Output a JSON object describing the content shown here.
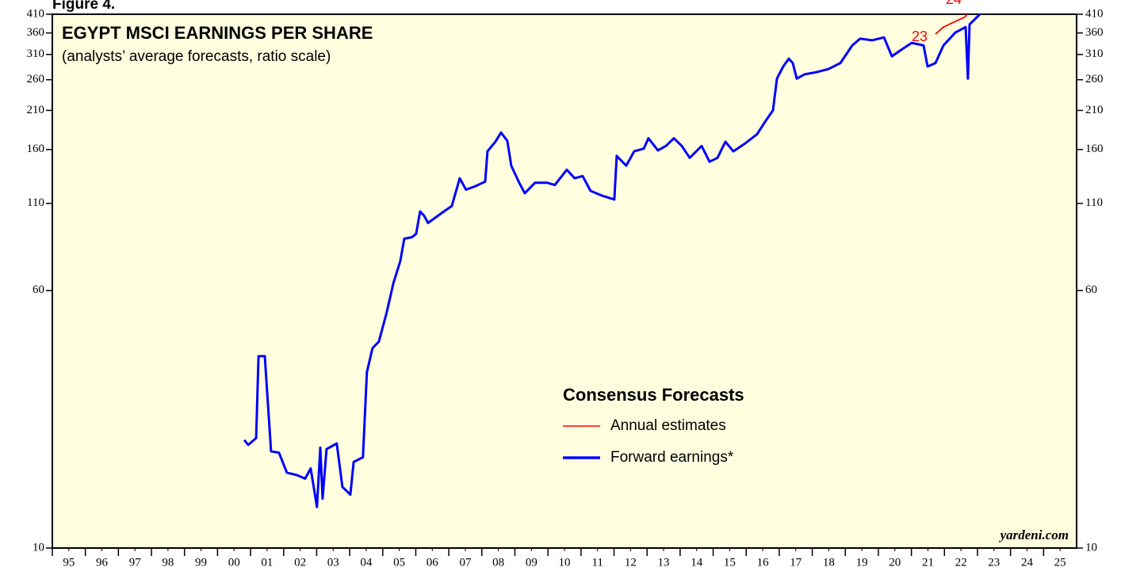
{
  "chart_data": {
    "type": "line",
    "figure_label": "Figure 4.",
    "title": "EGYPT MSCI EARNINGS PER SHARE",
    "subtitle": "(analysts’ average forecasts, ratio scale)",
    "legend_title": "Consensus Forecasts",
    "source": "yardeni.com",
    "log_scale": true,
    "ylim": [
      10,
      410
    ],
    "yticks": [
      10,
      60,
      110,
      160,
      210,
      260,
      310,
      360,
      410
    ],
    "xlim": [
      1995,
      2026
    ],
    "xticks": [
      {
        "value": 1995,
        "label": "95"
      },
      {
        "value": 1996,
        "label": "96"
      },
      {
        "value": 1997,
        "label": "97"
      },
      {
        "value": 1998,
        "label": "98"
      },
      {
        "value": 1999,
        "label": "99"
      },
      {
        "value": 2000,
        "label": "00"
      },
      {
        "value": 2001,
        "label": "01"
      },
      {
        "value": 2002,
        "label": "02"
      },
      {
        "value": 2003,
        "label": "03"
      },
      {
        "value": 2004,
        "label": "04"
      },
      {
        "value": 2005,
        "label": "05"
      },
      {
        "value": 2006,
        "label": "06"
      },
      {
        "value": 2007,
        "label": "07"
      },
      {
        "value": 2008,
        "label": "08"
      },
      {
        "value": 2009,
        "label": "09"
      },
      {
        "value": 2010,
        "label": "10"
      },
      {
        "value": 2011,
        "label": "11"
      },
      {
        "value": 2012,
        "label": "12"
      },
      {
        "value": 2013,
        "label": "13"
      },
      {
        "value": 2014,
        "label": "14"
      },
      {
        "value": 2015,
        "label": "15"
      },
      {
        "value": 2016,
        "label": "16"
      },
      {
        "value": 2017,
        "label": "17"
      },
      {
        "value": 2018,
        "label": "18"
      },
      {
        "value": 2019,
        "label": "19"
      },
      {
        "value": 2020,
        "label": "20"
      },
      {
        "value": 2021,
        "label": "21"
      },
      {
        "value": 2022,
        "label": "22"
      },
      {
        "value": 2023,
        "label": "23"
      },
      {
        "value": 2024,
        "label": "24"
      },
      {
        "value": 2025,
        "label": "25"
      }
    ],
    "annotations": [
      "23",
      "24"
    ],
    "series": [
      {
        "name": "Annual estimates",
        "color": "#ff0000",
        "x": [
          2021.73,
          2021.97,
          2022.33,
          2022.64,
          2022.74,
          2022.88,
          2023.17,
          2023.36,
          2023.41
        ],
        "values": [
          357,
          375,
          390,
          403,
          419,
          455,
          419,
          430,
          455
        ]
      },
      {
        "name": "Forward earnings*",
        "color": "#0000ff",
        "x": [
          2000.81,
          2000.93,
          2001.17,
          2001.24,
          2001.43,
          2001.62,
          2001.86,
          2002.1,
          2002.41,
          2002.65,
          2002.82,
          2003.01,
          2003.11,
          2003.18,
          2003.3,
          2003.61,
          2003.78,
          2004.02,
          2004.12,
          2004.4,
          2004.52,
          2004.69,
          2004.88,
          2005.12,
          2005.32,
          2005.53,
          2005.65,
          2005.89,
          2006.01,
          2006.13,
          2006.25,
          2006.37,
          2006.85,
          2007.09,
          2007.33,
          2007.52,
          2007.81,
          2008.1,
          2008.17,
          2008.41,
          2008.58,
          2008.77,
          2008.89,
          2009.13,
          2009.3,
          2009.61,
          2009.97,
          2010.21,
          2010.57,
          2010.81,
          2011.05,
          2011.29,
          2011.65,
          2012.01,
          2012.08,
          2012.37,
          2012.61,
          2012.9,
          2013.04,
          2013.33,
          2013.57,
          2013.81,
          2014.05,
          2014.29,
          2014.65,
          2014.89,
          2015.13,
          2015.37,
          2015.61,
          2015.97,
          2016.33,
          2016.57,
          2016.81,
          2016.93,
          2017.12,
          2017.29,
          2017.41,
          2017.53,
          2017.77,
          2018.13,
          2018.49,
          2018.85,
          2019.21,
          2019.45,
          2019.81,
          2020.17,
          2020.41,
          2020.65,
          2021.01,
          2021.37,
          2021.49,
          2021.73,
          2021.97,
          2022.33,
          2022.64,
          2022.71,
          2022.76,
          2023.05,
          2023.29,
          2023.45
        ],
        "values": [
          21.2,
          20.5,
          21.5,
          38,
          38,
          19.6,
          19.4,
          16.9,
          16.6,
          16.2,
          17.4,
          13.3,
          20.1,
          14.1,
          19.9,
          20.7,
          15.3,
          14.5,
          18.2,
          18.8,
          34,
          40.2,
          42,
          51.5,
          63,
          73.6,
          86,
          87,
          89,
          104,
          101,
          96,
          104,
          108,
          131,
          121,
          124,
          128,
          158,
          169,
          180,
          170,
          143,
          127,
          118,
          127,
          127,
          125,
          139,
          131,
          133,
          120,
          116,
          113,
          153,
          143,
          158,
          161,
          173,
          159,
          164,
          173,
          164,
          151,
          164,
          147,
          151,
          169,
          158,
          167,
          178,
          194,
          210,
          262,
          285,
          301,
          292,
          262,
          270,
          274,
          280,
          292,
          330,
          346,
          342,
          349,
          306,
          318,
          336,
          330,
          285,
          292,
          330,
          361,
          375,
          262,
          382,
          408,
          435,
          455
        ]
      }
    ]
  }
}
